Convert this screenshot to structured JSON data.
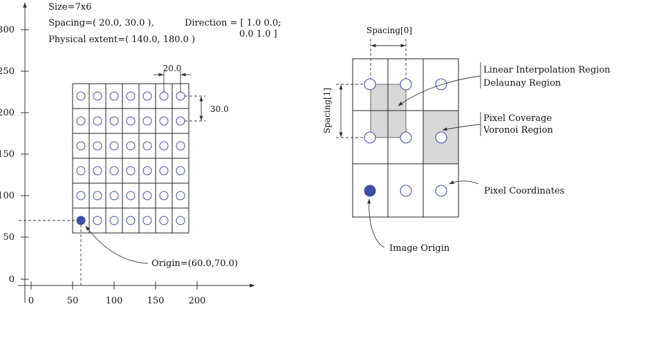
{
  "left_panel": {
    "size_label": "Size=7x6",
    "spacing_label": "Spacing=( 20.0, 30.0 ),",
    "extent_label": "Physical extent=( 140.0, 180.0 )",
    "direction_line1": "Direction = [ 1.0 0.0;",
    "direction_line2": "0.0 1.0 ]",
    "dim_x_label": "20.0",
    "dim_y_label": "30.0",
    "origin_label": "Origin=(60.0,70.0)",
    "x_ticks": [
      "0",
      "50",
      "100",
      "150",
      "200"
    ],
    "y_ticks": [
      "0",
      "50",
      "100",
      "150",
      "200",
      "250",
      "300"
    ],
    "pixel_columns": 7,
    "pixel_rows": 6,
    "colors": {
      "pixel_ring": "#3b4fa6",
      "origin_fill": "#3b4fa6"
    }
  },
  "right_panel": {
    "spacing0_label": "Spacing[0]",
    "spacing1_label": "Spacing[1]",
    "linear_interp_label": "Linear Interpolation Region",
    "delaunay_label": "Delaunay Region",
    "pixel_coverage_label": "Pixel Coverage",
    "voronoi_label": "Voronoi Region",
    "pixel_coords_label": "Pixel Coordinates",
    "image_origin_label": "Image Origin",
    "colors": {
      "region_fill": "#d8d8d8",
      "pixel_ring": "#3b4fa6"
    }
  }
}
